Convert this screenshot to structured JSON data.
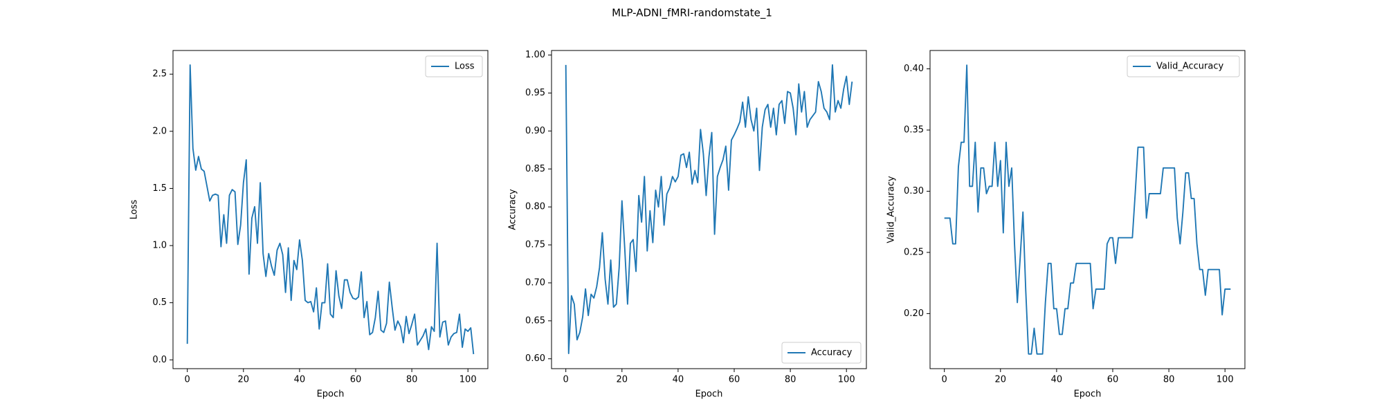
{
  "title": "MLP-ADNI_fMRI-randomstate_1",
  "chart_data": [
    {
      "type": "line",
      "xlabel": "Epoch",
      "ylabel": "Loss",
      "legend": "upper right",
      "xlim": [
        -5.1,
        107.1
      ],
      "ylim": [
        -0.077,
        2.707
      ],
      "xticks": [
        0,
        20,
        40,
        60,
        80,
        100
      ],
      "yticks": [
        {
          "value": 0,
          "label": "0.0"
        },
        0.5,
        {
          "value": 1,
          "label": "1.0"
        },
        1.5,
        {
          "value": 2,
          "label": "2.0"
        },
        2.5
      ],
      "x": [
        0,
        1,
        2,
        3,
        4,
        5,
        6,
        7,
        8,
        9,
        10,
        11,
        12,
        13,
        14,
        15,
        16,
        17,
        18,
        19,
        20,
        21,
        22,
        23,
        24,
        25,
        26,
        27,
        28,
        29,
        30,
        31,
        32,
        33,
        34,
        35,
        36,
        37,
        38,
        39,
        40,
        41,
        42,
        43,
        44,
        45,
        46,
        47,
        48,
        49,
        50,
        51,
        52,
        53,
        54,
        55,
        56,
        57,
        58,
        59,
        60,
        61,
        62,
        63,
        64,
        65,
        66,
        67,
        68,
        69,
        70,
        71,
        72,
        73,
        74,
        75,
        76,
        77,
        78,
        79,
        80,
        81,
        82,
        83,
        84,
        85,
        86,
        87,
        88,
        89,
        90,
        91,
        92,
        93,
        94,
        95,
        96,
        97,
        98,
        99,
        100,
        101,
        102
      ],
      "series": [
        {
          "name": "Loss",
          "color": "#1f77b4",
          "values": [
            0.14,
            2.58,
            1.85,
            1.66,
            1.78,
            1.67,
            1.65,
            1.52,
            1.39,
            1.44,
            1.45,
            1.44,
            0.99,
            1.27,
            1.02,
            1.44,
            1.49,
            1.47,
            1.01,
            1.18,
            1.55,
            1.75,
            0.75,
            1.24,
            1.34,
            1.02,
            1.55,
            0.93,
            0.73,
            0.93,
            0.82,
            0.74,
            0.96,
            1.02,
            0.92,
            0.59,
            0.98,
            0.52,
            0.87,
            0.79,
            1.05,
            0.87,
            0.52,
            0.5,
            0.51,
            0.42,
            0.63,
            0.27,
            0.5,
            0.5,
            0.84,
            0.4,
            0.37,
            0.78,
            0.56,
            0.45,
            0.7,
            0.7,
            0.59,
            0.54,
            0.53,
            0.55,
            0.77,
            0.37,
            0.51,
            0.22,
            0.24,
            0.37,
            0.6,
            0.26,
            0.24,
            0.32,
            0.68,
            0.46,
            0.26,
            0.34,
            0.29,
            0.15,
            0.38,
            0.23,
            0.31,
            0.4,
            0.13,
            0.17,
            0.21,
            0.27,
            0.09,
            0.29,
            0.25,
            1.02,
            0.2,
            0.33,
            0.34,
            0.13,
            0.2,
            0.23,
            0.24,
            0.4,
            0.11,
            0.27,
            0.25,
            0.28,
            0.05
          ]
        }
      ]
    },
    {
      "type": "line",
      "xlabel": "Epoch",
      "ylabel": "Accuracy",
      "legend": "lower right",
      "xlim": [
        -5.1,
        107.1
      ],
      "ylim": [
        0.587,
        1.006
      ],
      "xticks": [
        0,
        20,
        40,
        60,
        80,
        100
      ],
      "yticks": [
        {
          "value": 0.6,
          "label": "0.60"
        },
        0.65,
        {
          "value": 0.7,
          "label": "0.70"
        },
        0.75,
        {
          "value": 0.8,
          "label": "0.80"
        },
        0.85,
        {
          "value": 0.9,
          "label": "0.90"
        },
        0.95,
        {
          "value": 1,
          "label": "1.00"
        }
      ],
      "x": [
        0,
        1,
        2,
        3,
        4,
        5,
        6,
        7,
        8,
        9,
        10,
        11,
        12,
        13,
        14,
        15,
        16,
        17,
        18,
        19,
        20,
        21,
        22,
        23,
        24,
        25,
        26,
        27,
        28,
        29,
        30,
        31,
        32,
        33,
        34,
        35,
        36,
        37,
        38,
        39,
        40,
        41,
        42,
        43,
        44,
        45,
        46,
        47,
        48,
        49,
        50,
        51,
        52,
        53,
        54,
        55,
        56,
        57,
        58,
        59,
        60,
        61,
        62,
        63,
        64,
        65,
        66,
        67,
        68,
        69,
        70,
        71,
        72,
        73,
        74,
        75,
        76,
        77,
        78,
        79,
        80,
        81,
        82,
        83,
        84,
        85,
        86,
        87,
        88,
        89,
        90,
        91,
        92,
        93,
        94,
        95,
        96,
        97,
        98,
        99,
        100,
        101,
        102
      ],
      "series": [
        {
          "name": "Accuracy",
          "color": "#1f77b4",
          "values": [
            0.987,
            0.607,
            0.683,
            0.672,
            0.625,
            0.635,
            0.655,
            0.692,
            0.657,
            0.685,
            0.68,
            0.695,
            0.72,
            0.766,
            0.705,
            0.672,
            0.73,
            0.668,
            0.672,
            0.72,
            0.808,
            0.745,
            0.672,
            0.752,
            0.757,
            0.715,
            0.815,
            0.78,
            0.84,
            0.742,
            0.795,
            0.753,
            0.822,
            0.8,
            0.84,
            0.776,
            0.817,
            0.825,
            0.84,
            0.833,
            0.84,
            0.868,
            0.87,
            0.852,
            0.872,
            0.83,
            0.848,
            0.832,
            0.902,
            0.87,
            0.815,
            0.866,
            0.898,
            0.764,
            0.84,
            0.852,
            0.862,
            0.88,
            0.822,
            0.888,
            0.895,
            0.903,
            0.912,
            0.938,
            0.905,
            0.945,
            0.915,
            0.9,
            0.93,
            0.848,
            0.905,
            0.928,
            0.935,
            0.905,
            0.93,
            0.895,
            0.935,
            0.94,
            0.91,
            0.952,
            0.95,
            0.93,
            0.895,
            0.962,
            0.925,
            0.952,
            0.905,
            0.915,
            0.92,
            0.925,
            0.965,
            0.952,
            0.93,
            0.925,
            0.915,
            0.987,
            0.925,
            0.94,
            0.93,
            0.955,
            0.972,
            0.935,
            0.965
          ]
        }
      ]
    },
    {
      "type": "line",
      "xlabel": "Epoch",
      "ylabel": "Valid_Accuracy",
      "legend": "upper right",
      "xlim": [
        -5.1,
        107.1
      ],
      "ylim": [
        0.155,
        0.415
      ],
      "xticks": [
        0,
        20,
        40,
        60,
        80,
        100
      ],
      "yticks": [
        {
          "value": 0.2,
          "label": "0.20"
        },
        0.25,
        {
          "value": 0.3,
          "label": "0.30"
        },
        0.35,
        {
          "value": 0.4,
          "label": "0.40"
        }
      ],
      "x": [
        0,
        1,
        2,
        3,
        4,
        5,
        6,
        7,
        8,
        9,
        10,
        11,
        12,
        13,
        14,
        15,
        16,
        17,
        18,
        19,
        20,
        21,
        22,
        23,
        24,
        25,
        26,
        27,
        28,
        29,
        30,
        31,
        32,
        33,
        34,
        35,
        36,
        37,
        38,
        39,
        40,
        41,
        42,
        43,
        44,
        45,
        46,
        47,
        48,
        49,
        50,
        51,
        52,
        53,
        54,
        55,
        56,
        57,
        58,
        59,
        60,
        61,
        62,
        63,
        64,
        65,
        66,
        67,
        68,
        69,
        70,
        71,
        72,
        73,
        74,
        75,
        76,
        77,
        78,
        79,
        80,
        81,
        82,
        83,
        84,
        85,
        86,
        87,
        88,
        89,
        90,
        91,
        92,
        93,
        94,
        95,
        96,
        97,
        98,
        99,
        100,
        101,
        102
      ],
      "series": [
        {
          "name": "Valid_Accuracy",
          "color": "#1f77b4",
          "values": [
            0.278,
            0.278,
            0.278,
            0.257,
            0.257,
            0.32,
            0.34,
            0.34,
            0.403,
            0.304,
            0.304,
            0.34,
            0.283,
            0.319,
            0.319,
            0.298,
            0.304,
            0.304,
            0.34,
            0.304,
            0.325,
            0.266,
            0.34,
            0.304,
            0.319,
            0.257,
            0.209,
            0.245,
            0.283,
            0.219,
            0.167,
            0.167,
            0.188,
            0.167,
            0.167,
            0.167,
            0.209,
            0.241,
            0.241,
            0.204,
            0.204,
            0.183,
            0.183,
            0.204,
            0.204,
            0.225,
            0.225,
            0.241,
            0.241,
            0.241,
            0.241,
            0.241,
            0.241,
            0.204,
            0.22,
            0.22,
            0.22,
            0.22,
            0.257,
            0.262,
            0.262,
            0.241,
            0.262,
            0.262,
            0.262,
            0.262,
            0.262,
            0.262,
            0.298,
            0.336,
            0.336,
            0.336,
            0.278,
            0.298,
            0.298,
            0.298,
            0.298,
            0.298,
            0.319,
            0.319,
            0.319,
            0.319,
            0.319,
            0.278,
            0.257,
            0.283,
            0.315,
            0.315,
            0.294,
            0.294,
            0.257,
            0.236,
            0.236,
            0.215,
            0.236,
            0.236,
            0.236,
            0.236,
            0.236,
            0.199,
            0.22,
            0.22,
            0.22
          ]
        }
      ]
    }
  ]
}
